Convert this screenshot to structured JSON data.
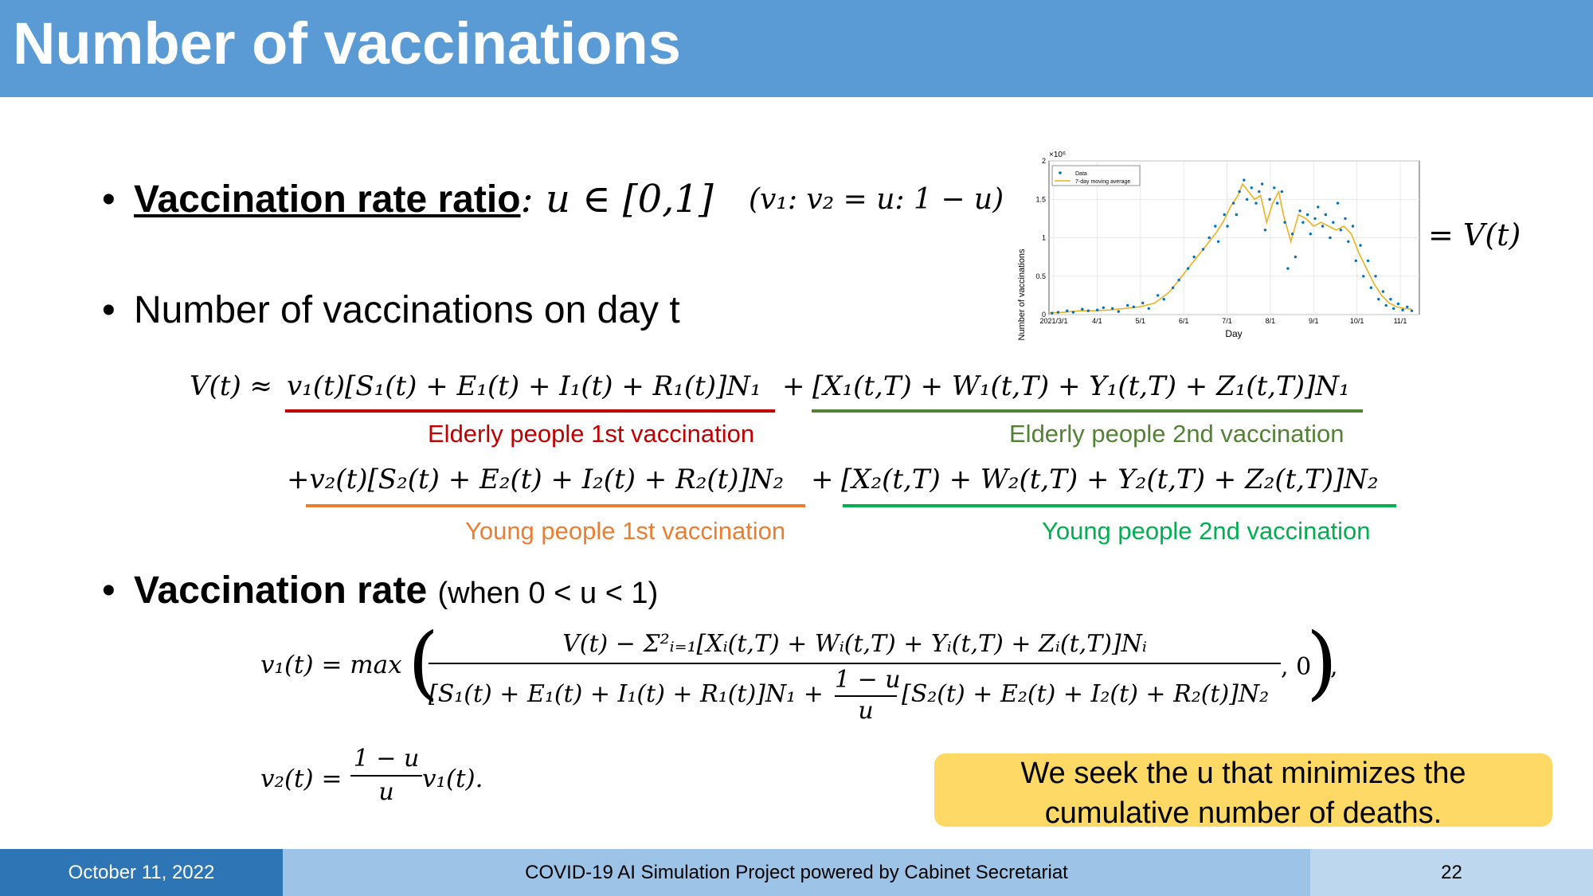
{
  "slide": {
    "title": "Number of vaccinations",
    "bullet1_label": "Vaccination rate ratio",
    "bullet1_math": ": u ∈ [0,1]",
    "bullet1_ratio": "(v₁: v₂ = u: 1 − u)",
    "bullet2_text": "Number of vaccinations on day t",
    "equals_vt": "= V(t)",
    "bullet3_bold": "Vaccination rate",
    "bullet3_paren": "(when 0 < u < 1)",
    "callout_line1": "We seek the u that minimizes the",
    "callout_line2": "cumulative number of deaths."
  },
  "equation": {
    "line1_left": "V(t) ≈",
    "line1_term1": "v₁(t)[S₁(t) + E₁(t) + I₁(t) + R₁(t)]N₁",
    "plus": "+",
    "line1_term2": "[X₁(t,T) + W₁(t,T) + Y₁(t,T) + Z₁(t,T)]N₁",
    "line2_term1": "+v₂(t)[S₂(t) + E₂(t) + I₂(t) + R₂(t)]N₂",
    "line2_term2": "[X₂(t,T) + W₂(t,T) + Y₂(t,T) + Z₂(t,T)]N₂",
    "labels": {
      "elderly_1st": "Elderly people 1st vaccination",
      "elderly_2nd": "Elderly people 2nd vaccination",
      "young_1st": "Young people 1st vaccination",
      "young_2nd": "Young people 2nd vaccination"
    },
    "colors": {
      "elderly_1st": "#c00000",
      "elderly_2nd": "#538135",
      "young_1st": "#ed7d31",
      "young_2nd": "#00b050"
    },
    "v1_left": "v₁(t) = max",
    "v1_num": "V(t) − Σ²ᵢ₌₁[Xᵢ(t,T) + Wᵢ(t,T) + Yᵢ(t,T) + Zᵢ(t,T)]Nᵢ",
    "v1_den_a": "[S₁(t) + E₁(t) + I₁(t) + R₁(t)]N₁ +",
    "v1_den_frac_num": "1 − u",
    "v1_den_frac_den": "u",
    "v1_den_b": "[S₂(t) + E₂(t) + I₂(t) + R₂(t)]N₂",
    "v1_tail": ", 0",
    "v1_end": ",",
    "v2_left": "v₂(t) =",
    "v2_frac_num": "1 − u",
    "v2_frac_den": "u",
    "v2_right": "v₁(t)."
  },
  "footer": {
    "date": "October 11, 2022",
    "project": "COVID-19 AI Simulation Project powered by Cabinet Secretariat",
    "page": "22"
  },
  "chart_data": {
    "type": "scatter",
    "ylabel": "Number of vaccinations",
    "xlabel": "Day",
    "y_exponent_label": "×10⁶",
    "ylim": [
      0,
      2
    ],
    "yticks": [
      "0",
      "0.5",
      "1",
      "1.5",
      "2"
    ],
    "xticks": [
      "2021/3/1",
      "4/1",
      "5/1",
      "6/1",
      "7/1",
      "8/1",
      "9/1",
      "10/1",
      "11/1"
    ],
    "legend": [
      "Data",
      "7-day moving average"
    ],
    "legend_position": "top-left",
    "series_colors": {
      "data": "#0072bd",
      "avg": "#edb120"
    },
    "moving_average": [
      [
        0,
        0.02
      ],
      [
        10,
        0.03
      ],
      [
        20,
        0.05
      ],
      [
        30,
        0.05
      ],
      [
        40,
        0.06
      ],
      [
        50,
        0.08
      ],
      [
        60,
        0.1
      ],
      [
        70,
        0.15
      ],
      [
        80,
        0.3
      ],
      [
        90,
        0.55
      ],
      [
        100,
        0.8
      ],
      [
        110,
        1.05
      ],
      [
        115,
        1.2
      ],
      [
        120,
        1.4
      ],
      [
        125,
        1.55
      ],
      [
        128,
        1.7
      ],
      [
        132,
        1.6
      ],
      [
        136,
        1.5
      ],
      [
        140,
        1.55
      ],
      [
        144,
        1.2
      ],
      [
        148,
        1.45
      ],
      [
        152,
        1.6
      ],
      [
        155,
        1.3
      ],
      [
        160,
        0.95
      ],
      [
        165,
        1.3
      ],
      [
        170,
        1.25
      ],
      [
        175,
        1.15
      ],
      [
        180,
        1.2
      ],
      [
        185,
        1.15
      ],
      [
        190,
        1.1
      ],
      [
        195,
        1.15
      ],
      [
        200,
        1.05
      ],
      [
        205,
        0.8
      ],
      [
        210,
        0.6
      ],
      [
        215,
        0.4
      ],
      [
        220,
        0.25
      ],
      [
        225,
        0.15
      ],
      [
        230,
        0.1
      ],
      [
        235,
        0.08
      ],
      [
        240,
        0.07
      ]
    ],
    "data_points": [
      [
        2,
        0.02
      ],
      [
        6,
        0.03
      ],
      [
        12,
        0.05
      ],
      [
        16,
        0.03
      ],
      [
        22,
        0.07
      ],
      [
        26,
        0.05
      ],
      [
        32,
        0.06
      ],
      [
        36,
        0.09
      ],
      [
        42,
        0.08
      ],
      [
        46,
        0.04
      ],
      [
        52,
        0.12
      ],
      [
        56,
        0.1
      ],
      [
        62,
        0.15
      ],
      [
        66,
        0.08
      ],
      [
        72,
        0.25
      ],
      [
        76,
        0.2
      ],
      [
        82,
        0.35
      ],
      [
        86,
        0.45
      ],
      [
        92,
        0.6
      ],
      [
        96,
        0.75
      ],
      [
        102,
        0.85
      ],
      [
        106,
        1.0
      ],
      [
        110,
        1.15
      ],
      [
        112,
        0.95
      ],
      [
        116,
        1.3
      ],
      [
        118,
        1.15
      ],
      [
        122,
        1.45
      ],
      [
        124,
        1.3
      ],
      [
        126,
        1.6
      ],
      [
        129,
        1.75
      ],
      [
        131,
        1.5
      ],
      [
        134,
        1.65
      ],
      [
        137,
        1.45
      ],
      [
        139,
        1.6
      ],
      [
        141,
        1.7
      ],
      [
        143,
        1.1
      ],
      [
        146,
        1.5
      ],
      [
        149,
        1.65
      ],
      [
        151,
        1.45
      ],
      [
        154,
        1.6
      ],
      [
        156,
        1.2
      ],
      [
        158,
        0.6
      ],
      [
        161,
        1.05
      ],
      [
        163,
        0.75
      ],
      [
        166,
        1.35
      ],
      [
        168,
        1.2
      ],
      [
        171,
        1.3
      ],
      [
        173,
        1.05
      ],
      [
        176,
        1.25
      ],
      [
        178,
        1.4
      ],
      [
        181,
        1.15
      ],
      [
        183,
        1.3
      ],
      [
        186,
        1.0
      ],
      [
        188,
        1.2
      ],
      [
        191,
        1.45
      ],
      [
        193,
        1.1
      ],
      [
        196,
        1.25
      ],
      [
        198,
        0.95
      ],
      [
        201,
        1.15
      ],
      [
        203,
        0.7
      ],
      [
        206,
        0.9
      ],
      [
        208,
        0.5
      ],
      [
        211,
        0.7
      ],
      [
        213,
        0.35
      ],
      [
        216,
        0.5
      ],
      [
        218,
        0.2
      ],
      [
        221,
        0.3
      ],
      [
        223,
        0.12
      ],
      [
        226,
        0.2
      ],
      [
        228,
        0.08
      ],
      [
        231,
        0.14
      ],
      [
        234,
        0.06
      ],
      [
        237,
        0.1
      ],
      [
        240,
        0.05
      ]
    ],
    "x_range": [
      0,
      245
    ]
  }
}
